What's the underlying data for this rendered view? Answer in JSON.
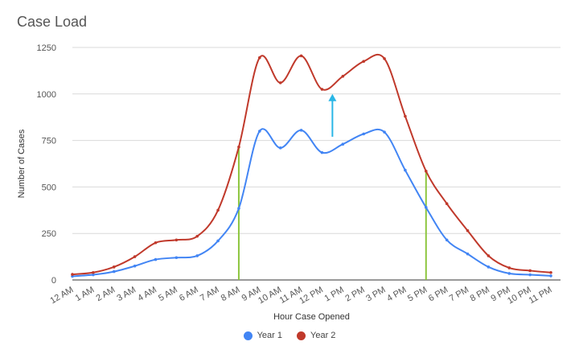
{
  "chart_data": {
    "type": "line",
    "title": "Case Load",
    "xlabel": "Hour Case Opened",
    "ylabel": "Number of Cases",
    "ylim": [
      0,
      1250
    ],
    "yticks": [
      "0",
      "250",
      "500",
      "750",
      "1000",
      "1250"
    ],
    "categories": [
      "12 AM",
      "1 AM",
      "2 AM",
      "3 AM",
      "4 AM",
      "5 AM",
      "6 AM",
      "7 AM",
      "8 AM",
      "9 AM",
      "10 AM",
      "11 AM",
      "12 PM",
      "1 PM",
      "2 PM",
      "3 PM",
      "4 PM",
      "5 PM",
      "6 PM",
      "7 PM",
      "8 PM",
      "9 PM",
      "10 PM",
      "11 PM"
    ],
    "series": [
      {
        "name": "Year 1",
        "color": "#4285f4",
        "values": [
          20,
          28,
          45,
          75,
          110,
          120,
          130,
          210,
          385,
          800,
          710,
          805,
          685,
          730,
          785,
          795,
          590,
          390,
          215,
          140,
          70,
          35,
          28,
          22
        ]
      },
      {
        "name": "Year 2",
        "color": "#c0392b",
        "values": [
          30,
          40,
          70,
          125,
          200,
          215,
          235,
          375,
          715,
          1195,
          1060,
          1205,
          1025,
          1095,
          1175,
          1190,
          880,
          585,
          410,
          265,
          130,
          65,
          50,
          40
        ]
      }
    ],
    "markers": [
      {
        "type": "vertical-line",
        "category": "8 AM",
        "from": 0,
        "to": 715,
        "color": "#8dc63f"
      },
      {
        "type": "vertical-line",
        "category": "5 PM",
        "from": 0,
        "to": 585,
        "color": "#8dc63f"
      },
      {
        "type": "arrow-up",
        "category_pos": 12.5,
        "from": 770,
        "to": 1000,
        "color": "#29b6e6"
      }
    ],
    "grid": true,
    "legend_position": "bottom"
  }
}
